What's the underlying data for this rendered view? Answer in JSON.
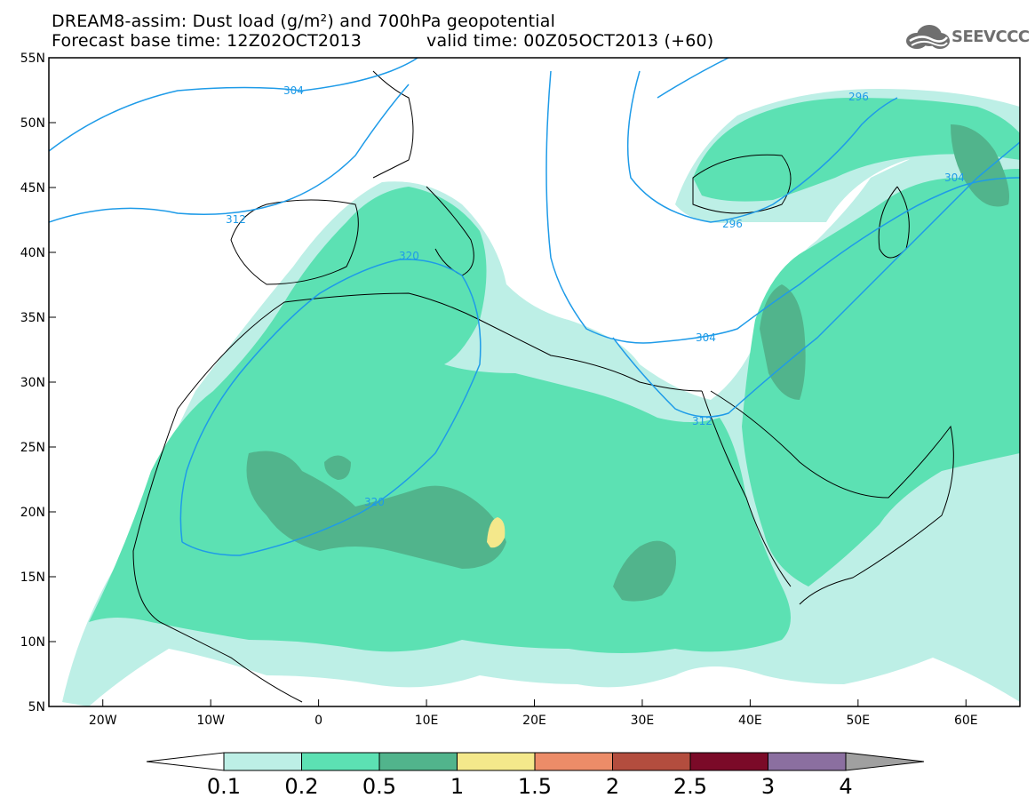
{
  "title": {
    "line1": "DREAM8-assim: Dust load (g/m²) and 700hPa geopotential",
    "line2a": "Forecast base time: 12Z02OCT2013",
    "line2b": "valid time: 00Z05OCT2013 (+60)"
  },
  "logo": {
    "text": "SEEVCCC",
    "icon": "cloud-logo-icon"
  },
  "axes": {
    "lon_range": [
      -25,
      65
    ],
    "lat_range": [
      5,
      55
    ],
    "lon_ticks": [
      "20W",
      "10W",
      "0",
      "10E",
      "20E",
      "30E",
      "40E",
      "50E",
      "60E"
    ],
    "lat_ticks": [
      "55N",
      "50N",
      "45N",
      "40N",
      "35N",
      "30N",
      "25N",
      "20N",
      "15N",
      "10N",
      "5N"
    ]
  },
  "contour_labels": [
    "304",
    "312",
    "320",
    "296",
    "296",
    "304",
    "304",
    "312",
    "320"
  ],
  "colorbar": {
    "labels": [
      "0.1",
      "0.2",
      "0.5",
      "1",
      "1.5",
      "2",
      "2.5",
      "3",
      "4"
    ],
    "colors": [
      "#ffffff",
      "#bdefe6",
      "#5ce1b3",
      "#51b48c",
      "#f4e88b",
      "#ec8c68",
      "#b34d3e",
      "#7b0a28",
      "#8b6fa0",
      "#a0a0a0"
    ]
  },
  "palette": {
    "dust_light": "#bdefe6",
    "dust_mid": "#5ce1b3",
    "dust_dark": "#51b48c",
    "dust_yellow": "#f4e88b",
    "contour": "#1e9be8",
    "coast": "#000000"
  }
}
